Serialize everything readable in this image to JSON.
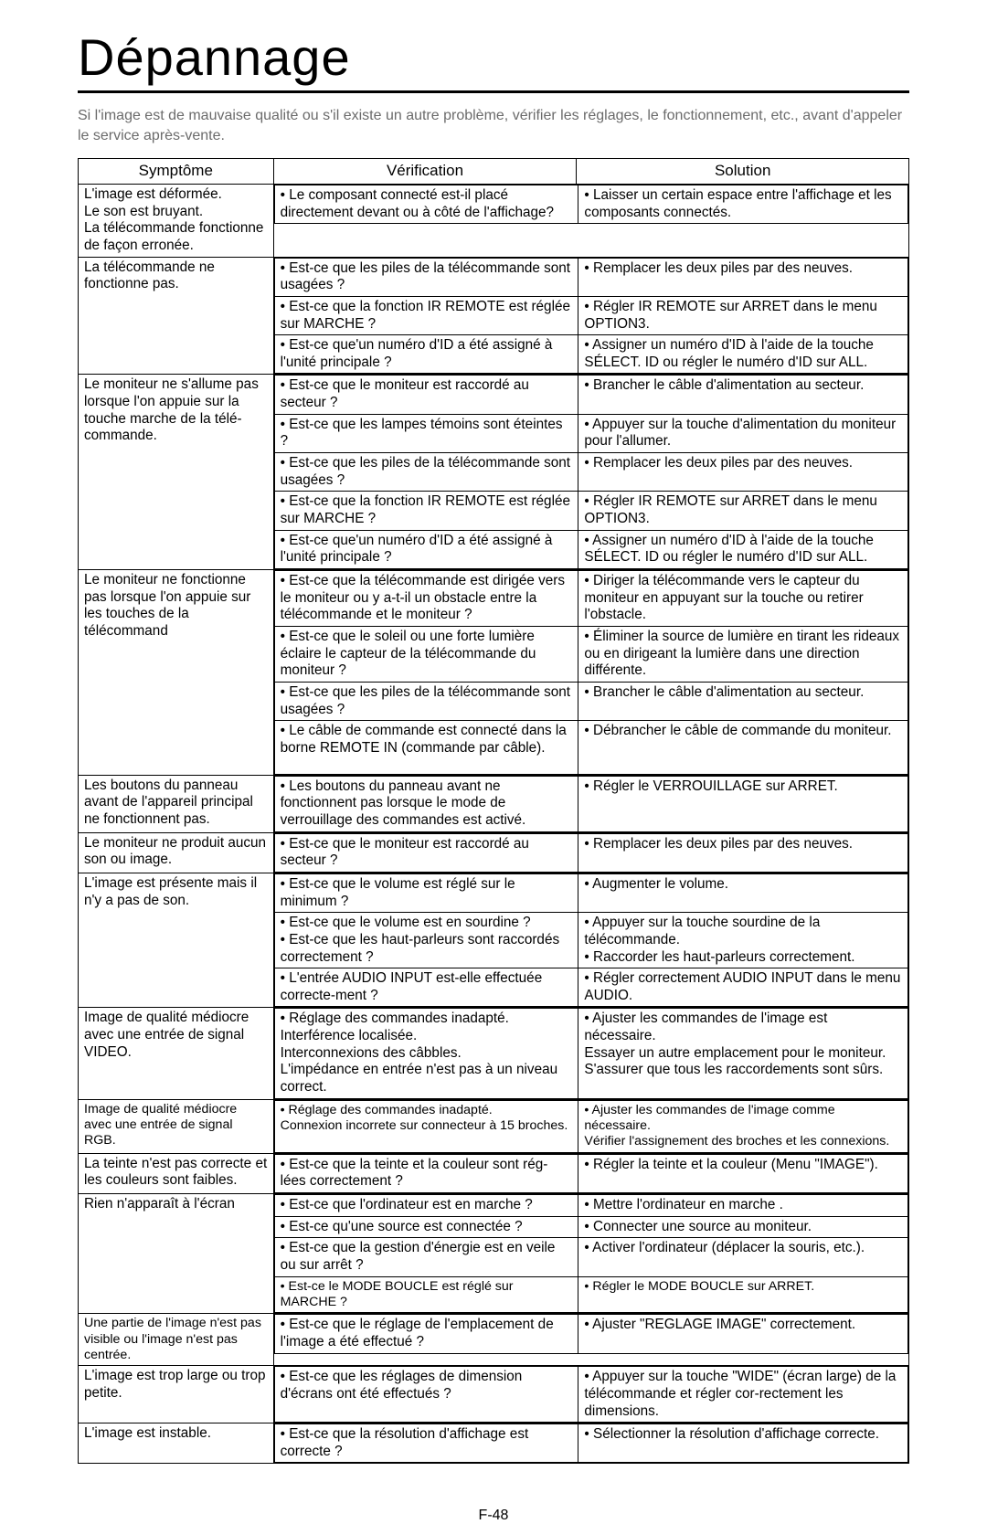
{
  "title": "Dépannage",
  "intro": "Si l'image est de mauvaise qualité ou s'il existe un autre problème, vérifier les réglages, le fonctionnement, etc., avant d'appeler le service après-vente.",
  "headers": {
    "symptom": "Symptôme",
    "check": "Vérification",
    "solution": "Solution"
  },
  "rows": [
    {
      "symptom": "L'image est déformée.\nLe son est bruyant.\nLa télécommande fonctionne de façon erronée.",
      "items": [
        {
          "check": "• Le composant connecté est-il placé directement devant ou à côté de l'affichage?",
          "solution": "• Laisser un certain espace entre l'affichage et les composants connectés."
        }
      ]
    },
    {
      "symptom": "La télécommande ne fonctionne pas.",
      "items": [
        {
          "check": "• Est-ce que les piles de la télécommande sont usagées ?",
          "solution": "• Remplacer les deux piles par des neuves."
        },
        {
          "check": "• Est-ce que la fonction IR REMOTE est réglée sur MARCHE ?",
          "solution": "• Régler IR REMOTE sur ARRET dans le menu OPTION3."
        },
        {
          "check": "• Est-ce que'un numéro d'ID a été assigné à l'unité principale ?",
          "solution": "• Assigner un numéro d'ID à l'aide de la touche SÉLECT. ID ou régler le numéro d'ID sur ALL."
        }
      ]
    },
    {
      "symptom": "Le moniteur ne s'allume pas lorsque l'on appuie sur la touche marche de la télé-commande.",
      "items": [
        {
          "check": "• Est-ce que le moniteur est raccordé au secteur ?",
          "solution": "• Brancher le câble d'alimentation au secteur."
        },
        {
          "check": "• Est-ce que les lampes témoins sont éteintes ?",
          "solution": "• Appuyer sur la touche d'alimentation du moniteur pour l'allumer."
        },
        {
          "check": "• Est-ce que les piles de la télécommande sont usagées ?",
          "solution": "• Remplacer les deux piles par des neuves."
        },
        {
          "check": "• Est-ce que la fonction IR REMOTE est réglée sur MARCHE ?",
          "solution": "• Régler IR REMOTE sur ARRET dans le menu OPTION3."
        },
        {
          "check": "• Est-ce que'un numéro d'ID a été assigné à l'unité principale ?",
          "solution": "• Assigner un numéro d'ID à l'aide de la touche SÉLECT. ID ou régler le numéro d'ID sur ALL."
        }
      ]
    },
    {
      "symptom": "Le moniteur ne fonctionne pas lorsque l'on appuie sur les touches de la télécommand",
      "items": [
        {
          "check": "• Est-ce que la télécommande est dirigée vers le moniteur ou y a-t-il un obstacle entre la télécommande et le moniteur ?",
          "solution": "• Diriger la télécommande vers le capteur du moniteur en appuyant sur la touche ou retirer l'obstacle."
        },
        {
          "check": "• Est-ce que le soleil ou une forte lumière éclaire le capteur de la télécommande du moniteur ?",
          "solution": "• Éliminer la source de lumière en tirant les rideaux ou en dirigeant la lumière dans une direction différente."
        },
        {
          "check": "• Est-ce que les piles de la télécommande sont usagées ?",
          "solution": "• Brancher le câble d'alimentation au secteur."
        },
        {
          "check": "• Le câble de commande est connecté dans la borne REMOTE IN (commande par câble).",
          "solution": "• Débrancher le câble de commande du moniteur."
        }
      ],
      "pad_after": true
    },
    {
      "symptom": "Les boutons du panneau avant de l'appareil principal ne fonctionnent pas.",
      "items": [
        {
          "check": "• Les boutons du panneau avant ne fonctionnent pas lorsque le mode de verrouillage des commandes est activé.",
          "solution": "• Régler le VERROUILLAGE sur ARRET."
        }
      ]
    },
    {
      "symptom": "Le moniteur ne produit aucun son ou image.",
      "items": [
        {
          "check": "• Est-ce que le moniteur est raccordé au secteur ?",
          "solution": "• Remplacer les deux piles par des neuves."
        }
      ]
    },
    {
      "symptom": "L'image est présente mais il n'y a pas de son.",
      "items": [
        {
          "check": "• Est-ce que le volume est réglé sur le minimum ?",
          "solution": "• Augmenter le volume."
        },
        {
          "check": "• Est-ce que le volume est en sourdine ?\n• Est-ce que les haut-parleurs sont raccordés correctement ?",
          "solution": "• Appuyer sur la touche sourdine de la télécommande.\n• Raccorder les haut-parleurs correctement."
        },
        {
          "check": "• L'entrée AUDIO INPUT est-elle effectuée correcte-ment ?",
          "solution": "• Régler correctement AUDIO INPUT dans le menu AUDIO."
        }
      ]
    },
    {
      "symptom": "Image de qualité médiocre avec une entrée de signal VIDEO.",
      "items": [
        {
          "check": "• Réglage des commandes inadapté.\nInterférence localisée.\nInterconnexions des câbbles.\nL'impédance en entrée n'est pas à un niveau correct.",
          "solution": "• Ajuster les commandes de l'image est nécessaire.\nEssayer un autre emplacement pour le moniteur.\nS'assurer que tous les raccordements sont sûrs."
        }
      ]
    },
    {
      "symptom_small": true,
      "symptom": "Image de qualité médiocre avec une entrée de signal RGB.",
      "items": [
        {
          "small": true,
          "check": "• Réglage des commandes inadapté.\nConnexion incorrete sur connecteur à 15 broches.",
          "solution": "• Ajuster les commandes de l'image comme nécessaire.\nVérifier l'assignement des broches et les connexions."
        }
      ]
    },
    {
      "symptom": "La teinte n'est pas correcte et les couleurs sont faibles.",
      "items": [
        {
          "check": "• Est-ce que la teinte et la couleur sont rég-lées correctement ?",
          "solution": "• Régler la teinte et la couleur (Menu \"IMAGE\")."
        }
      ]
    },
    {
      "symptom": "Rien n'apparaît à l'écran",
      "items": [
        {
          "check": "• Est-ce que l'ordinateur est en marche ?",
          "solution": "• Mettre l'ordinateur en marche ."
        },
        {
          "check": "• Est-ce qu'une source est connectée ?",
          "solution": "• Connecter une source au moniteur."
        },
        {
          "check": "• Est-ce que la gestion d'énergie est en veile ou sur arrêt ?",
          "solution": "• Activer l'ordinateur (déplacer la souris, etc.)."
        },
        {
          "small": true,
          "check": "• Est-ce  le MODE BOUCLE est réglé sur MARCHE ?",
          "solution": "• Régler le MODE BOUCLE sur ARRET."
        }
      ]
    },
    {
      "symptom_small": true,
      "symptom": "Une partie de l'image n'est pas visible ou l'image n'est pas centrée.",
      "items": [
        {
          "check": "• Est-ce que le réglage de l'emplacement de l'image a été effectué ?",
          "solution": "• Ajuster \"REGLAGE IMAGE\" correctement."
        }
      ]
    },
    {
      "symptom": "L'image est trop large ou trop petite.",
      "items": [
        {
          "check": "• Est-ce que les réglages de dimension d'écrans ont été effectués ?",
          "solution": "• Appuyer sur la touche \"WIDE\" (écran large) de la télécommande et régler cor-rectement les dimensions."
        }
      ]
    },
    {
      "symptom": "L'image est instable.",
      "items": [
        {
          "check": "• Est-ce que la résolution d'affichage est correcte ?",
          "solution": "• Sélectionner la résolution d'affichage correcte."
        }
      ]
    }
  ],
  "page_number": "F-48"
}
